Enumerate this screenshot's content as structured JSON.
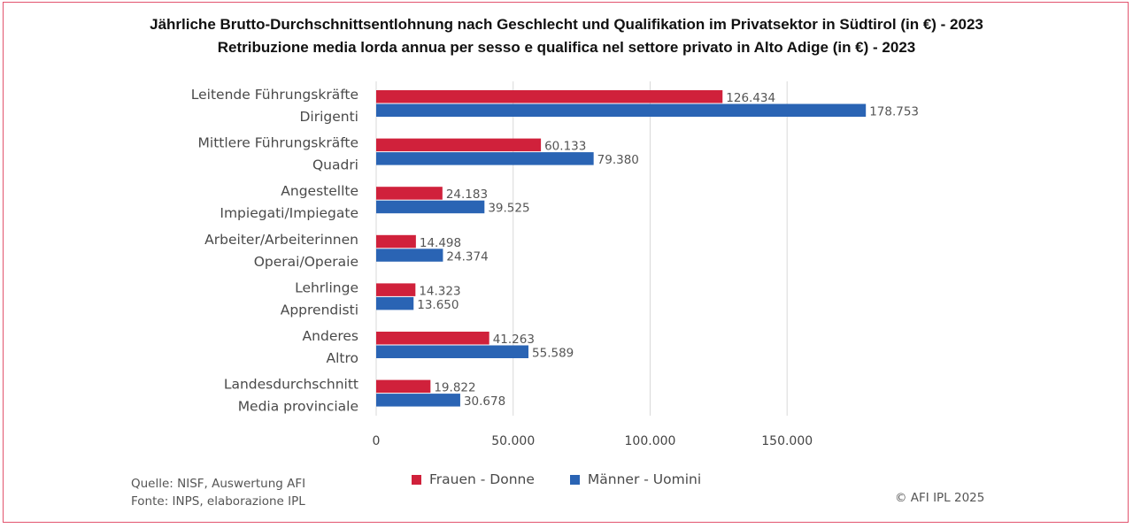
{
  "chart_data": {
    "type": "bar",
    "orientation": "horizontal",
    "title": "Jährliche Brutto-Durchschnittsentlohnung nach Geschlecht und Qualifikation im Privatsektor in Südtirol (in €) - 2023",
    "subtitle": "Retribuzione media lorda annua per sesso e qualifica nel settore privato in Alto Adige (in €) - 2023",
    "categories": [
      {
        "de": "Leitende Führungskräfte",
        "it": "Dirigenti"
      },
      {
        "de": "Mittlere Führungskräfte",
        "it": "Quadri"
      },
      {
        "de": "Angestellte",
        "it": "Impiegati/Impiegate"
      },
      {
        "de": "Arbeiter/Arbeiterinnen",
        "it": "Operai/Operaie"
      },
      {
        "de": "Lehrlinge",
        "it": "Apprendisti"
      },
      {
        "de": "Anderes",
        "it": "Altro"
      },
      {
        "de": "Landesdurchschnitt",
        "it": "Media provinciale"
      }
    ],
    "series": [
      {
        "name": "Frauen - Donne",
        "color": "#d0213b",
        "values": [
          126434,
          60133,
          24183,
          14498,
          14323,
          41263,
          19822
        ],
        "labels": [
          "126.434",
          "60.133",
          "24.183",
          "14.498",
          "14.323",
          "41.263",
          "19.822"
        ]
      },
      {
        "name": "Männer - Uomini",
        "color": "#2a64b4",
        "values": [
          178753,
          79380,
          39525,
          24374,
          13650,
          55589,
          30678
        ],
        "labels": [
          "178.753",
          "79.380",
          "39.525",
          "24.374",
          "13.650",
          "55.589",
          "30.678"
        ]
      }
    ],
    "xlim": [
      0,
      190000
    ],
    "xticks": [
      0,
      50000,
      100000,
      150000
    ],
    "xtick_labels": [
      "0",
      "50.000",
      "100.000",
      "150.000"
    ],
    "grid": true,
    "legend_position": "bottom"
  },
  "footer": {
    "source_de": "Quelle: NISF, Auswertung AFI",
    "source_it": "Fonte: INPS, elaborazione IPL",
    "copyright": "© AFI IPL 2025"
  }
}
